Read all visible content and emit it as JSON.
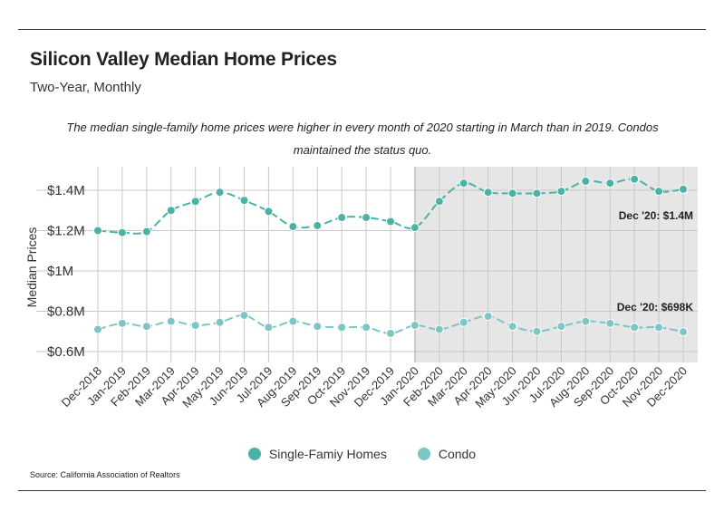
{
  "header": {
    "title": "Silicon Valley Median Home Prices",
    "subtitle": "Two-Year, Monthly",
    "description": "The median single-family home prices were higher in every month of 2020 starting in March than in 2019. Condos maintained the status quo."
  },
  "footer": {
    "source": "Source:  California Association of Realtors"
  },
  "colors": {
    "single_family": "#4bb3a6",
    "condo": "#7ec5c5",
    "shade": "#e6e6e6",
    "grid": "#c8c8c8"
  },
  "chart_data": {
    "type": "line",
    "ylabel": "Median Prices",
    "ylim": [
      0.55,
      1.5
    ],
    "yticks": [
      {
        "value": 0.6,
        "label": "$0.6M"
      },
      {
        "value": 0.8,
        "label": "$0.8M"
      },
      {
        "value": 1.0,
        "label": "$1M"
      },
      {
        "value": 1.2,
        "label": "$1.2M"
      },
      {
        "value": 1.4,
        "label": "$1.4M"
      }
    ],
    "categories": [
      "Dec-2018",
      "Jan-2019",
      "Feb-2019",
      "Mar-2019",
      "Apr-2019",
      "May-2019",
      "Jun-2019",
      "Jul-2019",
      "Aug-2019",
      "Sep-2019",
      "Oct-2019",
      "Nov-2019",
      "Dec-2019",
      "Jan-2020",
      "Feb-2020",
      "Mar-2020",
      "Apr-2020",
      "May-2020",
      "Jun-2020",
      "Jul-2020",
      "Aug-2020",
      "Sep-2020",
      "Oct-2020",
      "Nov-2020",
      "Dec-2020"
    ],
    "shaded_from": "Jan-2020",
    "series": [
      {
        "name": "Single-Famiy Homes",
        "color_key": "single_family",
        "values": [
          1.2,
          1.19,
          1.195,
          1.3,
          1.345,
          1.39,
          1.35,
          1.295,
          1.22,
          1.225,
          1.265,
          1.265,
          1.245,
          1.215,
          1.345,
          1.435,
          1.39,
          1.385,
          1.385,
          1.395,
          1.445,
          1.435,
          1.455,
          1.395,
          1.405
        ],
        "annotation": "Dec '20: $1.4M"
      },
      {
        "name": "Condo",
        "color_key": "condo",
        "values": [
          0.71,
          0.74,
          0.725,
          0.75,
          0.73,
          0.745,
          0.78,
          0.72,
          0.75,
          0.725,
          0.72,
          0.72,
          0.69,
          0.73,
          0.71,
          0.745,
          0.775,
          0.725,
          0.7,
          0.725,
          0.75,
          0.74,
          0.72,
          0.72,
          0.698
        ],
        "annotation": "Dec '20: $698K"
      }
    ]
  }
}
